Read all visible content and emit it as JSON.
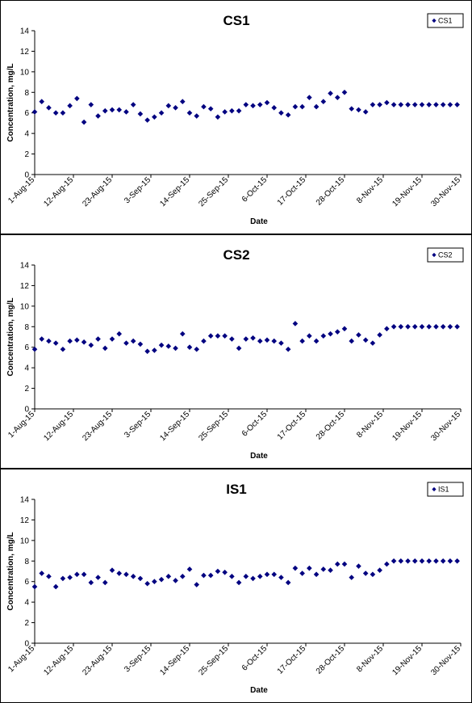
{
  "chart_data": [
    {
      "type": "scatter",
      "title": "CS1",
      "xlabel": "Date",
      "ylabel": "Concentration, mg/L",
      "ylim": [
        0,
        14
      ],
      "yticks": [
        0,
        2,
        4,
        6,
        8,
        10,
        12,
        14
      ],
      "xlim": [
        "2015-08-01",
        "2015-11-30"
      ],
      "xticks": [
        "1-Aug-15",
        "12-Aug-15",
        "23-Aug-15",
        "3-Sep-15",
        "14-Sep-15",
        "25-Sep-15",
        "6-Oct-15",
        "17-Oct-15",
        "28-Oct-15",
        "8-Nov-15",
        "19-Nov-15",
        "30-Nov-15"
      ],
      "grid": false,
      "legend": "top-right",
      "marker_color": "#000080",
      "series": [
        {
          "name": "CS1",
          "x": [
            "2015-08-01",
            "2015-08-03",
            "2015-08-05",
            "2015-08-07",
            "2015-08-09",
            "2015-08-11",
            "2015-08-13",
            "2015-08-15",
            "2015-08-17",
            "2015-08-19",
            "2015-08-21",
            "2015-08-23",
            "2015-08-25",
            "2015-08-27",
            "2015-08-29",
            "2015-08-31",
            "2015-09-02",
            "2015-09-04",
            "2015-09-06",
            "2015-09-08",
            "2015-09-10",
            "2015-09-12",
            "2015-09-14",
            "2015-09-16",
            "2015-09-18",
            "2015-09-20",
            "2015-09-22",
            "2015-09-24",
            "2015-09-26",
            "2015-09-28",
            "2015-09-30",
            "2015-10-02",
            "2015-10-04",
            "2015-10-06",
            "2015-10-08",
            "2015-10-10",
            "2015-10-12",
            "2015-10-14",
            "2015-10-16",
            "2015-10-18",
            "2015-10-20",
            "2015-10-22",
            "2015-10-24",
            "2015-10-26",
            "2015-10-28",
            "2015-10-30",
            "2015-11-01",
            "2015-11-03",
            "2015-11-05",
            "2015-11-07",
            "2015-11-09",
            "2015-11-11",
            "2015-11-13",
            "2015-11-15",
            "2015-11-17",
            "2015-11-19",
            "2015-11-21",
            "2015-11-23",
            "2015-11-25",
            "2015-11-27",
            "2015-11-29"
          ],
          "values": [
            6.1,
            7.1,
            6.5,
            6.0,
            6.0,
            6.7,
            7.4,
            5.1,
            6.8,
            5.7,
            6.2,
            6.3,
            6.3,
            6.1,
            6.8,
            5.9,
            5.3,
            5.6,
            6.0,
            6.7,
            6.5,
            7.1,
            6.0,
            5.7,
            6.6,
            6.4,
            5.6,
            6.1,
            6.2,
            6.2,
            6.8,
            6.7,
            6.8,
            7.0,
            6.5,
            6.0,
            5.8,
            6.6,
            6.6,
            7.5,
            6.6,
            7.1,
            7.9,
            7.5,
            8.0,
            6.4,
            6.3,
            6.1,
            6.8,
            6.8,
            7.0,
            6.8,
            6.8,
            6.8,
            6.8,
            6.8,
            6.8,
            6.8,
            6.8,
            6.8,
            6.8
          ]
        }
      ]
    },
    {
      "type": "scatter",
      "title": "CS2",
      "xlabel": "Date",
      "ylabel": "Concentration, mg/L",
      "ylim": [
        0,
        14
      ],
      "yticks": [
        0,
        2,
        4,
        6,
        8,
        10,
        12,
        14
      ],
      "xlim": [
        "2015-08-01",
        "2015-11-30"
      ],
      "xticks": [
        "1-Aug-15",
        "12-Aug-15",
        "23-Aug-15",
        "3-Sep-15",
        "14-Sep-15",
        "25-Sep-15",
        "6-Oct-15",
        "17-Oct-15",
        "28-Oct-15",
        "8-Nov-15",
        "19-Nov-15",
        "30-Nov-15"
      ],
      "grid": false,
      "legend": "top-right",
      "marker_color": "#000080",
      "series": [
        {
          "name": "CS2",
          "x": [
            "2015-08-01",
            "2015-08-03",
            "2015-08-05",
            "2015-08-07",
            "2015-08-09",
            "2015-08-11",
            "2015-08-13",
            "2015-08-15",
            "2015-08-17",
            "2015-08-19",
            "2015-08-21",
            "2015-08-23",
            "2015-08-25",
            "2015-08-27",
            "2015-08-29",
            "2015-08-31",
            "2015-09-02",
            "2015-09-04",
            "2015-09-06",
            "2015-09-08",
            "2015-09-10",
            "2015-09-12",
            "2015-09-14",
            "2015-09-16",
            "2015-09-18",
            "2015-09-20",
            "2015-09-22",
            "2015-09-24",
            "2015-09-26",
            "2015-09-28",
            "2015-09-30",
            "2015-10-02",
            "2015-10-04",
            "2015-10-06",
            "2015-10-08",
            "2015-10-10",
            "2015-10-12",
            "2015-10-14",
            "2015-10-16",
            "2015-10-18",
            "2015-10-20",
            "2015-10-22",
            "2015-10-24",
            "2015-10-26",
            "2015-10-28",
            "2015-10-30",
            "2015-11-01",
            "2015-11-03",
            "2015-11-05",
            "2015-11-07",
            "2015-11-09",
            "2015-11-11",
            "2015-11-13",
            "2015-11-15",
            "2015-11-17",
            "2015-11-19",
            "2015-11-21",
            "2015-11-23",
            "2015-11-25",
            "2015-11-27",
            "2015-11-29"
          ],
          "values": [
            5.8,
            6.8,
            6.6,
            6.4,
            5.8,
            6.6,
            6.7,
            6.5,
            6.2,
            6.8,
            5.9,
            6.8,
            7.3,
            6.4,
            6.6,
            6.3,
            5.6,
            5.7,
            6.2,
            6.1,
            5.9,
            7.3,
            6.0,
            5.8,
            6.6,
            7.1,
            7.1,
            7.1,
            6.8,
            5.9,
            6.8,
            6.9,
            6.6,
            6.7,
            6.6,
            6.4,
            5.8,
            8.3,
            6.6,
            7.1,
            6.6,
            7.1,
            7.3,
            7.5,
            7.8,
            6.6,
            7.2,
            6.7,
            6.4,
            7.2,
            7.8,
            8.0,
            8.0,
            8.0,
            8.0,
            8.0,
            8.0,
            8.0,
            8.0,
            8.0,
            8.0
          ]
        }
      ]
    },
    {
      "type": "scatter",
      "title": "IS1",
      "xlabel": "Date",
      "ylabel": "Concentration, mg/L",
      "ylim": [
        0,
        14
      ],
      "yticks": [
        0,
        2,
        4,
        6,
        8,
        10,
        12,
        14
      ],
      "xlim": [
        "2015-08-01",
        "2015-11-30"
      ],
      "xticks": [
        "1-Aug-15",
        "12-Aug-15",
        "23-Aug-15",
        "3-Sep-15",
        "14-Sep-15",
        "25-Sep-15",
        "6-Oct-15",
        "17-Oct-15",
        "28-Oct-15",
        "8-Nov-15",
        "19-Nov-15",
        "30-Nov-15"
      ],
      "grid": false,
      "legend": "top-right",
      "marker_color": "#000080",
      "series": [
        {
          "name": "IS1",
          "x": [
            "2015-08-01",
            "2015-08-03",
            "2015-08-05",
            "2015-08-07",
            "2015-08-09",
            "2015-08-11",
            "2015-08-13",
            "2015-08-15",
            "2015-08-17",
            "2015-08-19",
            "2015-08-21",
            "2015-08-23",
            "2015-08-25",
            "2015-08-27",
            "2015-08-29",
            "2015-08-31",
            "2015-09-02",
            "2015-09-04",
            "2015-09-06",
            "2015-09-08",
            "2015-09-10",
            "2015-09-12",
            "2015-09-14",
            "2015-09-16",
            "2015-09-18",
            "2015-09-20",
            "2015-09-22",
            "2015-09-24",
            "2015-09-26",
            "2015-09-28",
            "2015-09-30",
            "2015-10-02",
            "2015-10-04",
            "2015-10-06",
            "2015-10-08",
            "2015-10-10",
            "2015-10-12",
            "2015-10-14",
            "2015-10-16",
            "2015-10-18",
            "2015-10-20",
            "2015-10-22",
            "2015-10-24",
            "2015-10-26",
            "2015-10-28",
            "2015-10-30",
            "2015-11-01",
            "2015-11-03",
            "2015-11-05",
            "2015-11-07",
            "2015-11-09",
            "2015-11-11",
            "2015-11-13",
            "2015-11-15",
            "2015-11-17",
            "2015-11-19",
            "2015-11-21",
            "2015-11-23",
            "2015-11-25",
            "2015-11-27",
            "2015-11-29"
          ],
          "values": [
            5.5,
            6.8,
            6.5,
            5.5,
            6.3,
            6.4,
            6.7,
            6.7,
            5.9,
            6.4,
            5.9,
            7.1,
            6.8,
            6.7,
            6.5,
            6.3,
            5.8,
            6.0,
            6.2,
            6.5,
            6.1,
            6.5,
            7.2,
            5.7,
            6.6,
            6.6,
            7.0,
            6.9,
            6.5,
            5.9,
            6.5,
            6.3,
            6.5,
            6.7,
            6.7,
            6.4,
            5.9,
            7.3,
            6.8,
            7.3,
            6.7,
            7.2,
            7.1,
            7.7,
            7.7,
            6.4,
            7.5,
            6.8,
            6.7,
            7.1,
            7.7,
            8.0,
            8.0,
            8.0,
            8.0,
            8.0,
            8.0,
            8.0,
            8.0,
            8.0,
            8.0
          ]
        }
      ]
    }
  ]
}
